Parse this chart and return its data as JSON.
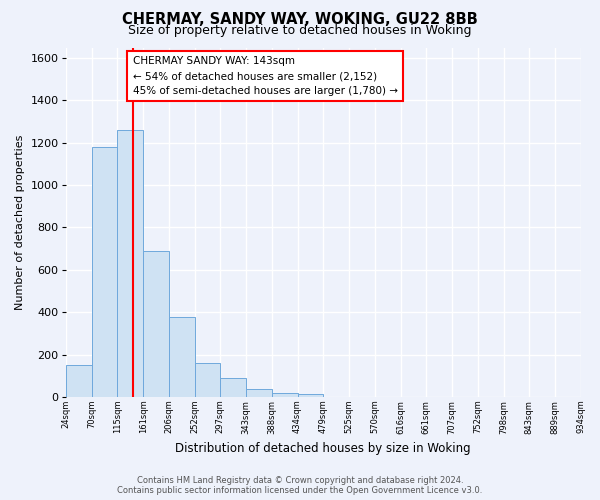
{
  "title": "CHERMAY, SANDY WAY, WOKING, GU22 8BB",
  "subtitle": "Size of property relative to detached houses in Woking",
  "xlabel": "Distribution of detached houses by size in Woking",
  "ylabel": "Number of detached properties",
  "bar_color": "#cfe2f3",
  "bar_edge_color": "#6fa8dc",
  "bin_edges": [
    24,
    70,
    115,
    161,
    206,
    252,
    297,
    343,
    388,
    434,
    479,
    525,
    570,
    616,
    661,
    707,
    752,
    798,
    843,
    889,
    934
  ],
  "bar_heights": [
    150,
    1180,
    1260,
    690,
    375,
    160,
    90,
    35,
    20,
    15,
    0,
    0,
    0,
    0,
    0,
    0,
    0,
    0,
    0,
    0
  ],
  "xlim_left": 24,
  "xlim_right": 934,
  "ylim_top": 1650,
  "yticks": [
    0,
    200,
    400,
    600,
    800,
    1000,
    1200,
    1400,
    1600
  ],
  "x_tick_labels": [
    "24sqm",
    "70sqm",
    "115sqm",
    "161sqm",
    "206sqm",
    "252sqm",
    "297sqm",
    "343sqm",
    "388sqm",
    "434sqm",
    "479sqm",
    "525sqm",
    "570sqm",
    "616sqm",
    "661sqm",
    "707sqm",
    "752sqm",
    "798sqm",
    "843sqm",
    "889sqm",
    "934sqm"
  ],
  "x_tick_positions": [
    24,
    70,
    115,
    161,
    206,
    252,
    297,
    343,
    388,
    434,
    479,
    525,
    570,
    616,
    661,
    707,
    752,
    798,
    843,
    889,
    934
  ],
  "red_line_x": 143,
  "annotation_title": "CHERMAY SANDY WAY: 143sqm",
  "annotation_line1": "← 54% of detached houses are smaller (2,152)",
  "annotation_line2": "45% of semi-detached houses are larger (1,780) →",
  "footer_line1": "Contains HM Land Registry data © Crown copyright and database right 2024.",
  "footer_line2": "Contains public sector information licensed under the Open Government Licence v3.0.",
  "background_color": "#eef2fb",
  "plot_bg_color": "#eef2fb",
  "grid_color": "#ffffff",
  "title_fontsize": 10.5,
  "subtitle_fontsize": 9
}
